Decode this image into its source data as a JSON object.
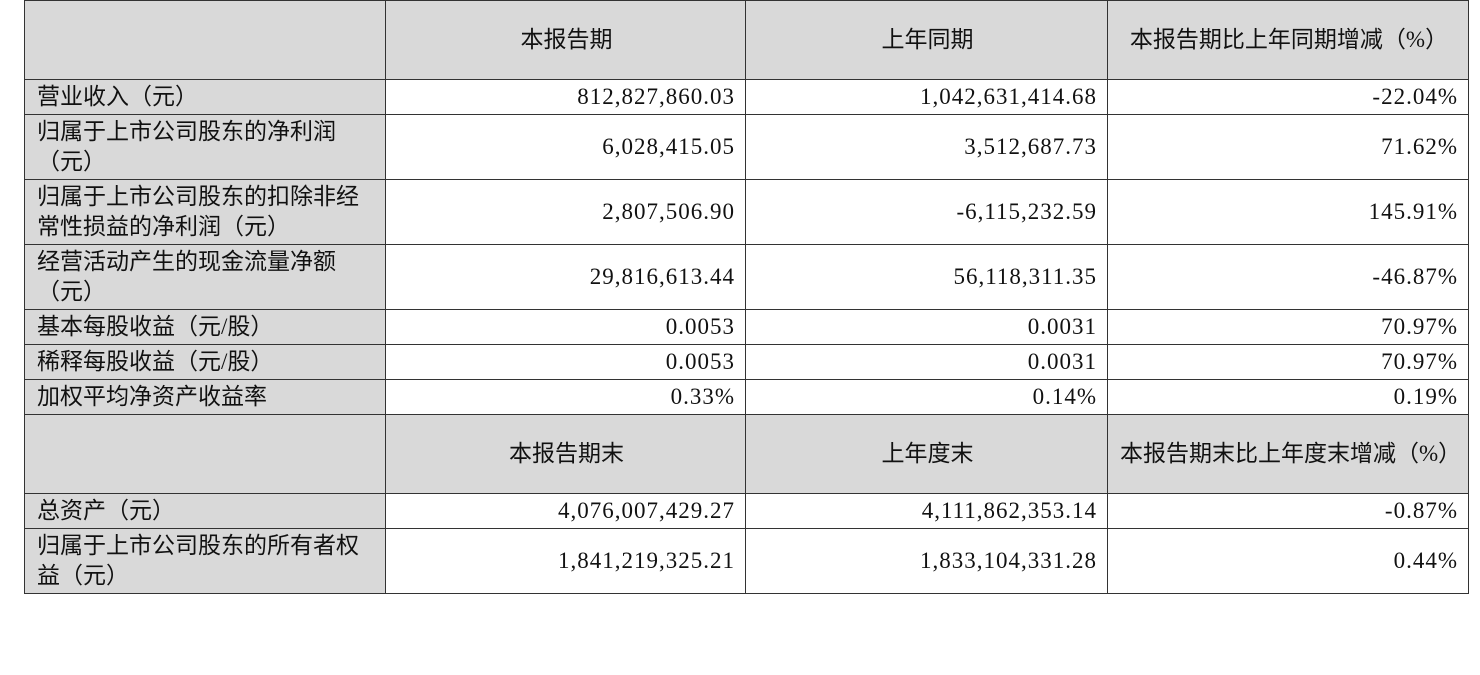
{
  "table": {
    "header1": [
      "本报告期",
      "上年同期",
      "本报告期比上年同期增减（%）"
    ],
    "rows": [
      [
        "营业收入（元）",
        "812,827,860.03",
        "1,042,631,414.68",
        "-22.04%"
      ],
      [
        "归属于上市公司股东的净利润（元）",
        "6,028,415.05",
        "3,512,687.73",
        "71.62%"
      ],
      [
        "归属于上市公司股东的扣除非经常性损益的净利润（元）",
        "2,807,506.90",
        "-6,115,232.59",
        "145.91%"
      ],
      [
        "经营活动产生的现金流量净额（元）",
        "29,816,613.44",
        "56,118,311.35",
        "-46.87%"
      ],
      [
        "基本每股收益（元/股）",
        "0.0053",
        "0.0031",
        "70.97%"
      ],
      [
        "稀释每股收益（元/股）",
        "0.0053",
        "0.0031",
        "70.97%"
      ],
      [
        "加权平均净资产收益率",
        "0.33%",
        "0.14%",
        "0.19%"
      ]
    ],
    "header2": [
      "本报告期末",
      "上年度末",
      "本报告期末比上年度末增减（%）"
    ],
    "rows2": [
      [
        "总资产（元）",
        "4,076,007,429.27",
        "4,111,862,353.14",
        "-0.87%"
      ],
      [
        "归属于上市公司股东的所有者权益（元）",
        "1,841,219,325.21",
        "1,833,104,331.28",
        "0.44%"
      ]
    ]
  }
}
